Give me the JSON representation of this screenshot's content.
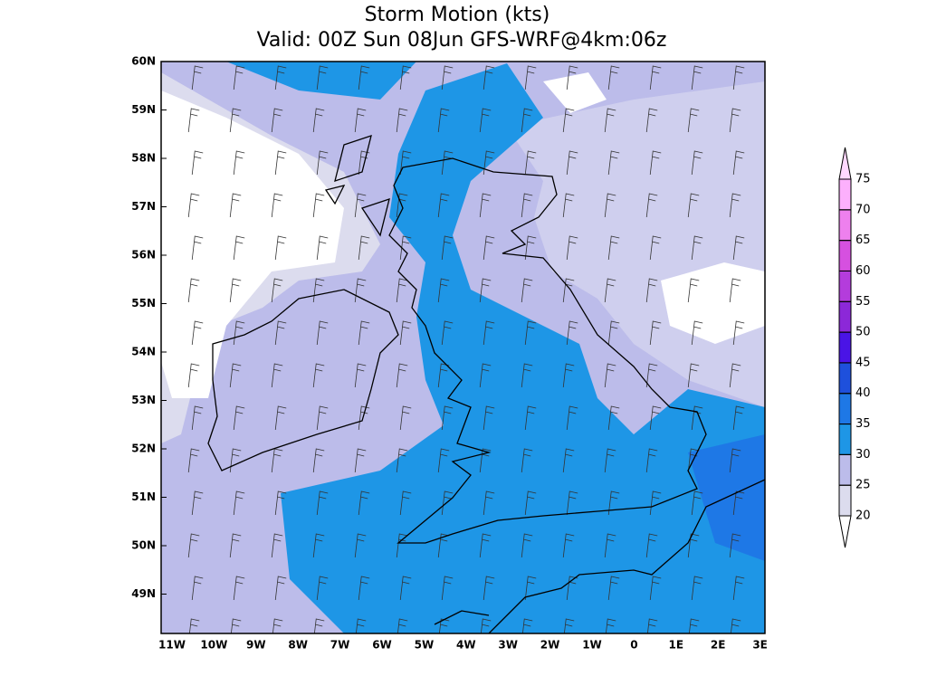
{
  "title": [
    "Storm Motion (kts)",
    "Valid: 00Z Sun 08Jun GFS-WRF@4km:06z"
  ],
  "lat_labels": [
    "60N",
    "59N",
    "58N",
    "57N",
    "56N",
    "55N",
    "54N",
    "53N",
    "52N",
    "51N",
    "50N",
    "49N"
  ],
  "lon_labels": [
    "11W",
    "10W",
    "9W",
    "8W",
    "7W",
    "6W",
    "5W",
    "4W",
    "3W",
    "2W",
    "1W",
    "0",
    "1E",
    "2E",
    "3E"
  ],
  "colorbar": {
    "levels": [
      20,
      25,
      30,
      35,
      40,
      45,
      50,
      55,
      60,
      65,
      70,
      75
    ],
    "colors": [
      "#dcdcee",
      "#bcbcea",
      "#1e96e6",
      "#1e78e6",
      "#1e50dc",
      "#4a14e6",
      "#8c28d8",
      "#b43cdc",
      "#d650e0",
      "#ee80ee",
      "#fcb0fc"
    ],
    "under_color": "#ffffff",
    "over_color": "#ffd8ff"
  }
}
